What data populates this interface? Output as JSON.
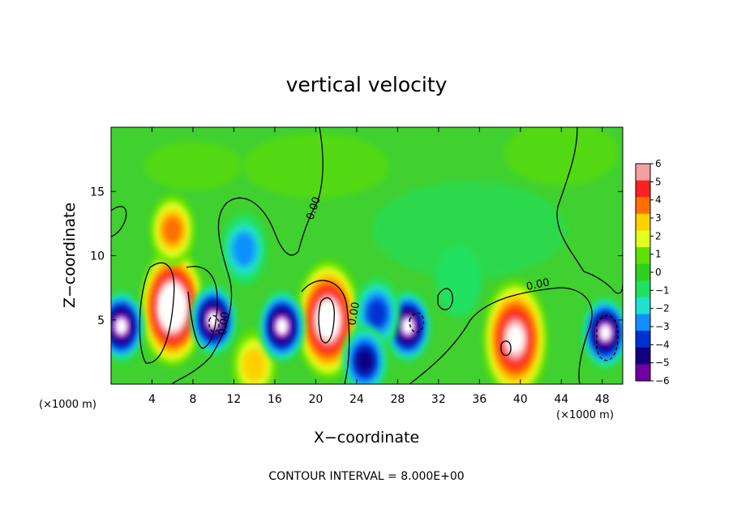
{
  "chart_data": {
    "type": "heatmap",
    "title": "vertical velocity",
    "xlabel": "X−coordinate",
    "ylabel": "Z−coordinate",
    "x_unit_left": "(×1000 m)",
    "x_unit_right": "(×1000 m)",
    "xlim": [
      0,
      50
    ],
    "ylim": [
      0,
      20
    ],
    "x_ticks": [
      4,
      8,
      12,
      16,
      20,
      24,
      28,
      32,
      36,
      40,
      44,
      48
    ],
    "y_ticks": [
      5,
      10,
      15
    ],
    "colorbar": {
      "ticks": [
        "6",
        "5",
        "4",
        "3",
        "2",
        "1",
        "0",
        "−1",
        "−2",
        "−3",
        "−4",
        "−5",
        "−6"
      ],
      "range": [
        -6,
        6
      ],
      "colors": [
        "#f4a0a0",
        "#ff2020",
        "#ff7000",
        "#ffd000",
        "#e0ff20",
        "#60e000",
        "#30d020",
        "#20e060",
        "#20e0d0",
        "#1090ff",
        "#0030d0",
        "#100080",
        "#7000a0"
      ]
    },
    "contour_labels": [
      "0.00",
      "0.00",
      "0.00",
      "0.00",
      "0.00"
    ],
    "contour_interval_text": "CONTOUR INTERVAL = 8.000E+00",
    "features": [
      {
        "x": 6.0,
        "z": 6.0,
        "value": 9,
        "note": "strong updraft core (white, above colorbar max)"
      },
      {
        "x": 6.0,
        "z": 12.0,
        "value": 4
      },
      {
        "x": 21.2,
        "z": 5.0,
        "value": 8
      },
      {
        "x": 39.5,
        "z": 3.5,
        "value": 7
      },
      {
        "x": 14.0,
        "z": 1.5,
        "value": 3
      },
      {
        "x": 1.0,
        "z": 4.5,
        "value": -7
      },
      {
        "x": 10.0,
        "z": 5.0,
        "value": -7
      },
      {
        "x": 16.7,
        "z": 4.5,
        "value": -7
      },
      {
        "x": 29.0,
        "z": 4.5,
        "value": -7
      },
      {
        "x": 48.3,
        "z": 4.0,
        "value": -7
      },
      {
        "x": 13.0,
        "z": 10.5,
        "value": -3
      },
      {
        "x": 26.0,
        "z": 5.5,
        "value": -4
      },
      {
        "x": 24.8,
        "z": 1.8,
        "value": -5
      },
      {
        "x": 34.0,
        "z": 8.0,
        "value": -1.5
      }
    ]
  }
}
